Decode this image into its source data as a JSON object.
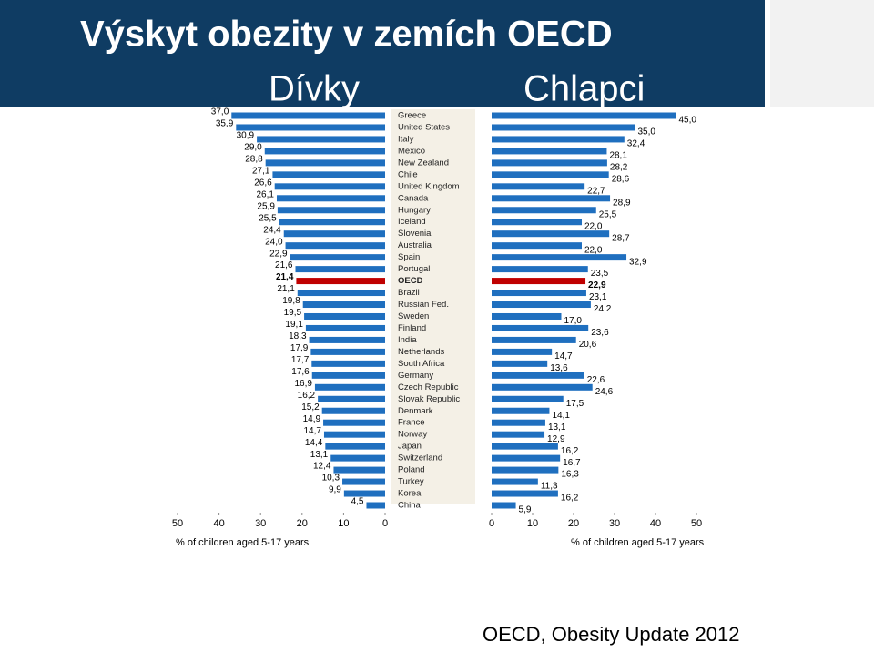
{
  "chart_data": {
    "type": "butterfly",
    "title": "Výskyt obezity v zemích OECD",
    "source": "OECD, Obesity Update 2012",
    "categories": [
      "Greece",
      "United States",
      "Italy",
      "Mexico",
      "New Zealand",
      "Chile",
      "United Kingdom",
      "Canada",
      "Hungary",
      "Iceland",
      "Slovenia",
      "Australia",
      "Spain",
      "Portugal",
      "OECD",
      "Brazil",
      "Russian Fed.",
      "Sweden",
      "Finland",
      "India",
      "Netherlands",
      "South Africa",
      "Germany",
      "Czech Republic",
      "Slovak Republic",
      "Denmark",
      "France",
      "Norway",
      "Japan",
      "Switzerland",
      "Poland",
      "Turkey",
      "Korea",
      "China"
    ],
    "highlight_category": "OECD",
    "highlight_color": "#c00000",
    "xlim": [
      0,
      50
    ],
    "xticks": [
      0,
      10,
      20,
      30,
      40,
      50
    ],
    "xlabel": "% of children aged 5-17 years",
    "series": [
      {
        "name": "Dívky",
        "color": "#1f6fbf",
        "values": [
          37.0,
          35.9,
          30.9,
          29.0,
          28.8,
          27.1,
          26.6,
          26.1,
          25.9,
          25.5,
          24.4,
          24.0,
          22.9,
          21.6,
          21.4,
          21.1,
          19.8,
          19.5,
          19.1,
          18.3,
          17.9,
          17.7,
          17.6,
          16.9,
          16.2,
          15.2,
          14.9,
          14.7,
          14.4,
          13.1,
          12.4,
          10.3,
          9.9,
          4.5
        ],
        "value_labels": [
          "37,0",
          "35,9",
          "30,9",
          "29,0",
          "28,8",
          "27,1",
          "26,6",
          "26,1",
          "25,9",
          "25,5",
          "24,4",
          "24,0",
          "22,9",
          "21,6",
          "21,4",
          "21,1",
          "19,8",
          "19,5",
          "19,1",
          "18,3",
          "17,9",
          "17,7",
          "17,6",
          "16,9",
          "16,2",
          "15,2",
          "14,9",
          "14,7",
          "14,4",
          "13,1",
          "12,4",
          "10,3",
          "9,9",
          "4,5"
        ]
      },
      {
        "name": "Chlapci",
        "color": "#1f6fbf",
        "values": [
          45.0,
          35.0,
          32.4,
          28.1,
          28.2,
          28.6,
          22.7,
          28.9,
          25.5,
          22.0,
          28.7,
          22.0,
          32.9,
          23.5,
          22.9,
          23.1,
          24.2,
          17.0,
          23.6,
          20.6,
          14.7,
          13.6,
          22.6,
          24.6,
          17.5,
          14.1,
          13.1,
          12.9,
          16.2,
          16.7,
          16.3,
          11.3,
          16.2,
          5.9
        ],
        "value_labels": [
          "45,0",
          "35,0",
          "32,4",
          "28,1",
          "28,2",
          "28,6",
          "22,7",
          "28,9",
          "25,5",
          "22,0",
          "28,7",
          "22,0",
          "32,9",
          "23,5",
          "22,9",
          "23,1",
          "24,2",
          "17,0",
          "23,6",
          "20,6",
          "14,7",
          "13,6",
          "22,6",
          "24,6",
          "17,5",
          "14,1",
          "13,1",
          "12,9",
          "16,2",
          "16,7",
          "16,3",
          "11,3",
          "16,2",
          "5,9"
        ]
      }
    ]
  }
}
